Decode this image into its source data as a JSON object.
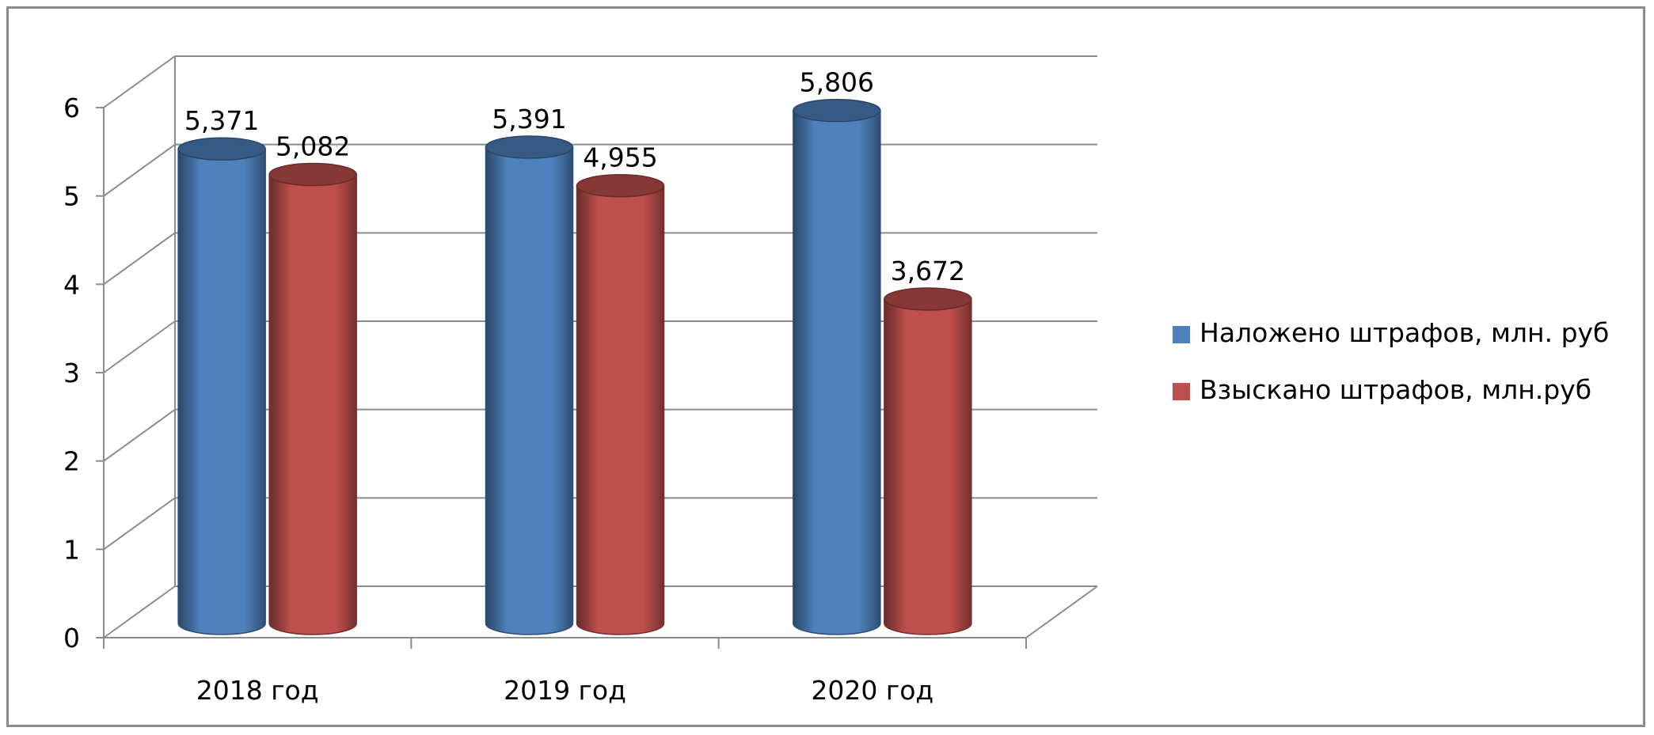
{
  "chart_data": {
    "type": "bar",
    "style": "3d-cylinder",
    "categories": [
      "2018 год",
      "2019 год",
      "2020 год"
    ],
    "series": [
      {
        "name": "Наложено штрафов, млн. руб",
        "color": "#4f81bd",
        "values": [
          5.371,
          5.391,
          5.806
        ],
        "value_labels": [
          "5,371",
          "5,391",
          "5,806"
        ]
      },
      {
        "name": "Взыскано штрафов, млн.руб",
        "color": "#c0504d",
        "values": [
          5.082,
          4.955,
          3.672
        ],
        "value_labels": [
          "5,082",
          "4,955",
          "3,672"
        ]
      }
    ],
    "ylim": [
      0,
      6
    ],
    "yticks": [
      "0",
      "1",
      "2",
      "3",
      "4",
      "5",
      "6"
    ],
    "grid": true,
    "legend_position": "right"
  }
}
